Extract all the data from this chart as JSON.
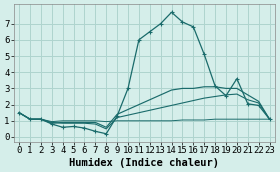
{
  "background_color": "#d5eeea",
  "grid_color": "#aed4ce",
  "line_color": "#1a6b6b",
  "xlabel": "Humidex (Indice chaleur)",
  "xlabel_fontsize": 7.5,
  "tick_fontsize": 6.5,
  "xlim": [
    -0.5,
    23.5
  ],
  "ylim": [
    -0.3,
    8.2
  ],
  "yticks": [
    0,
    1,
    2,
    3,
    4,
    5,
    6,
    7
  ],
  "xticks": [
    0,
    1,
    2,
    3,
    4,
    5,
    6,
    7,
    8,
    9,
    10,
    11,
    12,
    13,
    14,
    15,
    16,
    17,
    18,
    19,
    20,
    21,
    22,
    23
  ],
  "line1_x": [
    0,
    1,
    2,
    3,
    4,
    5,
    6,
    7,
    8,
    9,
    10,
    11,
    12,
    13,
    14,
    15,
    16,
    17,
    18,
    19,
    20,
    21,
    22,
    23
  ],
  "line1_y": [
    1.5,
    1.1,
    1.1,
    0.8,
    0.6,
    0.65,
    0.55,
    0.35,
    0.2,
    1.3,
    3.0,
    6.0,
    6.5,
    7.0,
    7.7,
    7.1,
    6.8,
    5.1,
    3.15,
    2.55,
    3.6,
    2.05,
    1.95,
    1.1
  ],
  "line2_x": [
    0,
    1,
    2,
    3,
    4,
    5,
    6,
    7,
    8,
    9,
    10,
    11,
    12,
    13,
    14,
    15,
    16,
    17,
    18,
    19,
    20,
    21,
    22,
    23
  ],
  "line2_y": [
    1.5,
    1.1,
    1.1,
    0.85,
    0.9,
    0.9,
    0.9,
    0.9,
    0.6,
    1.4,
    1.7,
    2.0,
    2.3,
    2.6,
    2.9,
    3.0,
    3.0,
    3.1,
    3.1,
    3.0,
    3.0,
    2.6,
    2.2,
    1.1
  ],
  "line3_x": [
    0,
    1,
    2,
    3,
    4,
    5,
    6,
    7,
    8,
    9,
    10,
    11,
    12,
    13,
    14,
    15,
    16,
    17,
    18,
    19,
    20,
    21,
    22,
    23
  ],
  "line3_y": [
    1.5,
    1.1,
    1.1,
    0.9,
    0.85,
    0.85,
    0.85,
    0.8,
    0.5,
    1.2,
    1.35,
    1.5,
    1.65,
    1.8,
    1.95,
    2.1,
    2.25,
    2.4,
    2.5,
    2.6,
    2.65,
    2.3,
    2.1,
    1.1
  ],
  "line4_x": [
    0,
    1,
    2,
    3,
    4,
    5,
    6,
    7,
    8,
    9,
    10,
    11,
    12,
    13,
    14,
    15,
    16,
    17,
    18,
    19,
    20,
    21,
    22,
    23
  ],
  "line4_y": [
    1.5,
    1.1,
    1.1,
    0.95,
    1.0,
    1.0,
    1.0,
    1.0,
    0.95,
    1.0,
    1.0,
    1.0,
    1.0,
    1.0,
    1.0,
    1.05,
    1.05,
    1.05,
    1.1,
    1.1,
    1.1,
    1.1,
    1.1,
    1.1
  ]
}
